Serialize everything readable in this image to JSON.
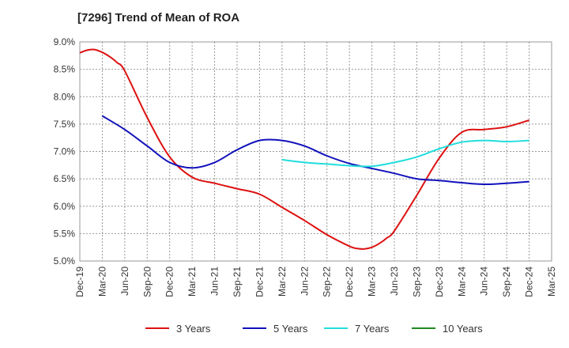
{
  "chart_data": {
    "type": "line",
    "title": "[7296]  Trend of Mean of ROA",
    "xlabel": "",
    "ylabel": "",
    "ylim": [
      5.0,
      9.0
    ],
    "yticks": [
      "5.0%",
      "5.5%",
      "6.0%",
      "6.5%",
      "7.0%",
      "7.5%",
      "8.0%",
      "8.5%",
      "9.0%"
    ],
    "xticks": [
      "Dec-19",
      "Mar-20",
      "Jun-20",
      "Sep-20",
      "Dec-20",
      "Mar-21",
      "Jun-21",
      "Sep-21",
      "Dec-21",
      "Mar-22",
      "Jun-22",
      "Sep-22",
      "Dec-22",
      "Mar-23",
      "Jun-23",
      "Sep-23",
      "Dec-23",
      "Mar-24",
      "Jun-24",
      "Sep-24",
      "Dec-24",
      "Mar-25"
    ],
    "grid": true,
    "legend_position": "bottom",
    "series": [
      {
        "name": "3 Years",
        "color": "#dd1111",
        "x": [
          "Dec-19",
          "Jan-20",
          "Feb-20",
          "Mar-20",
          "Apr-20",
          "May-20",
          "Jun-20",
          "Sep-20",
          "Dec-20",
          "Mar-21",
          "Jun-21",
          "Sep-21",
          "Dec-21",
          "Mar-22",
          "Jun-22",
          "Sep-22",
          "Dec-22",
          "Jan-23",
          "Feb-23",
          "Mar-23",
          "Apr-23",
          "May-23",
          "Jun-23",
          "Sep-23",
          "Dec-23",
          "Mar-24",
          "Jun-24",
          "Sep-24",
          "Dec-24"
        ],
        "values": [
          8.8,
          8.85,
          8.86,
          8.81,
          8.73,
          8.62,
          8.47,
          7.62,
          6.9,
          6.53,
          6.42,
          6.32,
          6.22,
          5.98,
          5.74,
          5.48,
          5.27,
          5.23,
          5.22,
          5.25,
          5.32,
          5.42,
          5.55,
          6.2,
          6.88,
          7.35,
          7.4,
          7.45,
          7.57
        ]
      },
      {
        "name": "5 Years",
        "color": "#1111bb",
        "x": [
          "Mar-20",
          "Jun-20",
          "Sep-20",
          "Dec-20",
          "Mar-21",
          "Jun-21",
          "Sep-21",
          "Dec-21",
          "Mar-22",
          "Jun-22",
          "Sep-22",
          "Dec-22",
          "Mar-23",
          "Jun-23",
          "Sep-23",
          "Dec-23",
          "Mar-24",
          "Jun-24",
          "Sep-24",
          "Dec-24"
        ],
        "values": [
          7.65,
          7.4,
          7.1,
          6.8,
          6.7,
          6.8,
          7.03,
          7.2,
          7.2,
          7.1,
          6.92,
          6.78,
          6.69,
          6.6,
          6.5,
          6.47,
          6.43,
          6.4,
          6.42,
          6.45
        ]
      },
      {
        "name": "7 Years",
        "color": "#22dddd",
        "x": [
          "Mar-22",
          "Jun-22",
          "Sep-22",
          "Dec-22",
          "Mar-23",
          "Jun-23",
          "Sep-23",
          "Dec-23",
          "Mar-24",
          "Jun-24",
          "Sep-24",
          "Dec-24"
        ],
        "values": [
          6.85,
          6.8,
          6.77,
          6.74,
          6.73,
          6.8,
          6.9,
          7.05,
          7.17,
          7.2,
          7.18,
          7.2
        ]
      },
      {
        "name": "10 Years",
        "color": "#228822",
        "x": [],
        "values": []
      }
    ]
  }
}
